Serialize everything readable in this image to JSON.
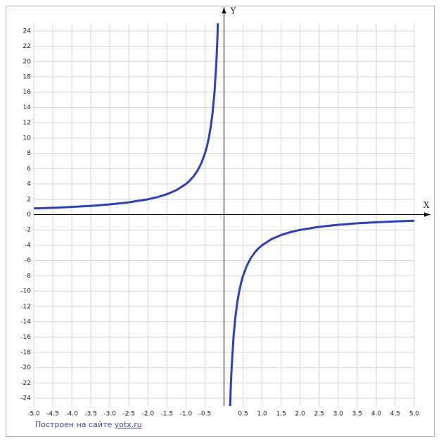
{
  "chart_data": {
    "type": "line",
    "x_label": "X",
    "y_label": "Y",
    "x": [
      -5,
      -4.5,
      -4,
      -3.5,
      -3,
      -2.5,
      -2,
      -1.75,
      -1.5,
      -1.25,
      -1,
      -0.9,
      -0.8,
      -0.7,
      -0.6,
      -0.5,
      -0.45,
      -0.4,
      -0.35,
      -0.3,
      -0.25,
      -0.2,
      -0.18,
      -0.16,
      0,
      0.16,
      0.18,
      0.2,
      0.25,
      0.3,
      0.35,
      0.4,
      0.45,
      0.5,
      0.6,
      0.7,
      0.8,
      0.9,
      1,
      1.25,
      1.5,
      1.75,
      2,
      2.5,
      3,
      3.5,
      4,
      4.5,
      5
    ],
    "series": [
      {
        "color": "#2b3fbf",
        "values": [
          0.8,
          0.889,
          1,
          1.143,
          1.333,
          1.6,
          2,
          2.286,
          2.667,
          3.2,
          4,
          4.444,
          5,
          5.714,
          6.667,
          8,
          8.889,
          10,
          11.429,
          13.333,
          16,
          20,
          22.222,
          25,
          null,
          -25,
          -22.222,
          -20,
          -16,
          -13.333,
          -11.429,
          -10,
          -8.889,
          -8,
          -6.667,
          -5.714,
          -5,
          -4.444,
          -4,
          -3.2,
          -2.667,
          -2.286,
          -2,
          -1.6,
          -1.333,
          -1.143,
          -1,
          -0.889,
          -0.8
        ]
      }
    ],
    "xlim": [
      -5,
      5
    ],
    "ylim": [
      -25,
      25
    ],
    "xticks": [
      {
        "value": -5,
        "label": "-5.0"
      },
      -4.5,
      {
        "value": -4,
        "label": "-4.0"
      },
      -3.5,
      {
        "value": -3,
        "label": "-3.0"
      },
      -2.5,
      {
        "value": -2,
        "label": "-2.0"
      },
      -1.5,
      {
        "value": -1,
        "label": "-1.0"
      },
      -0.5,
      0.5,
      {
        "value": 1,
        "label": "1.0"
      },
      1.5,
      {
        "value": 2,
        "label": "2.0"
      },
      2.5,
      {
        "value": 3,
        "label": "3.0"
      },
      3.5,
      {
        "value": 4,
        "label": "4.0"
      },
      4.5,
      {
        "value": 5,
        "label": "5.0"
      }
    ],
    "yticks": [
      24,
      22,
      20,
      18,
      16,
      14,
      12,
      10,
      8,
      6,
      4,
      2,
      0,
      -2,
      -4,
      -6,
      -8,
      -10,
      -12,
      -14,
      -16,
      -18,
      -20,
      -22,
      -24
    ],
    "grid": true
  },
  "footer": {
    "text": "Построен на сайте",
    "link": "yotx.ru"
  }
}
